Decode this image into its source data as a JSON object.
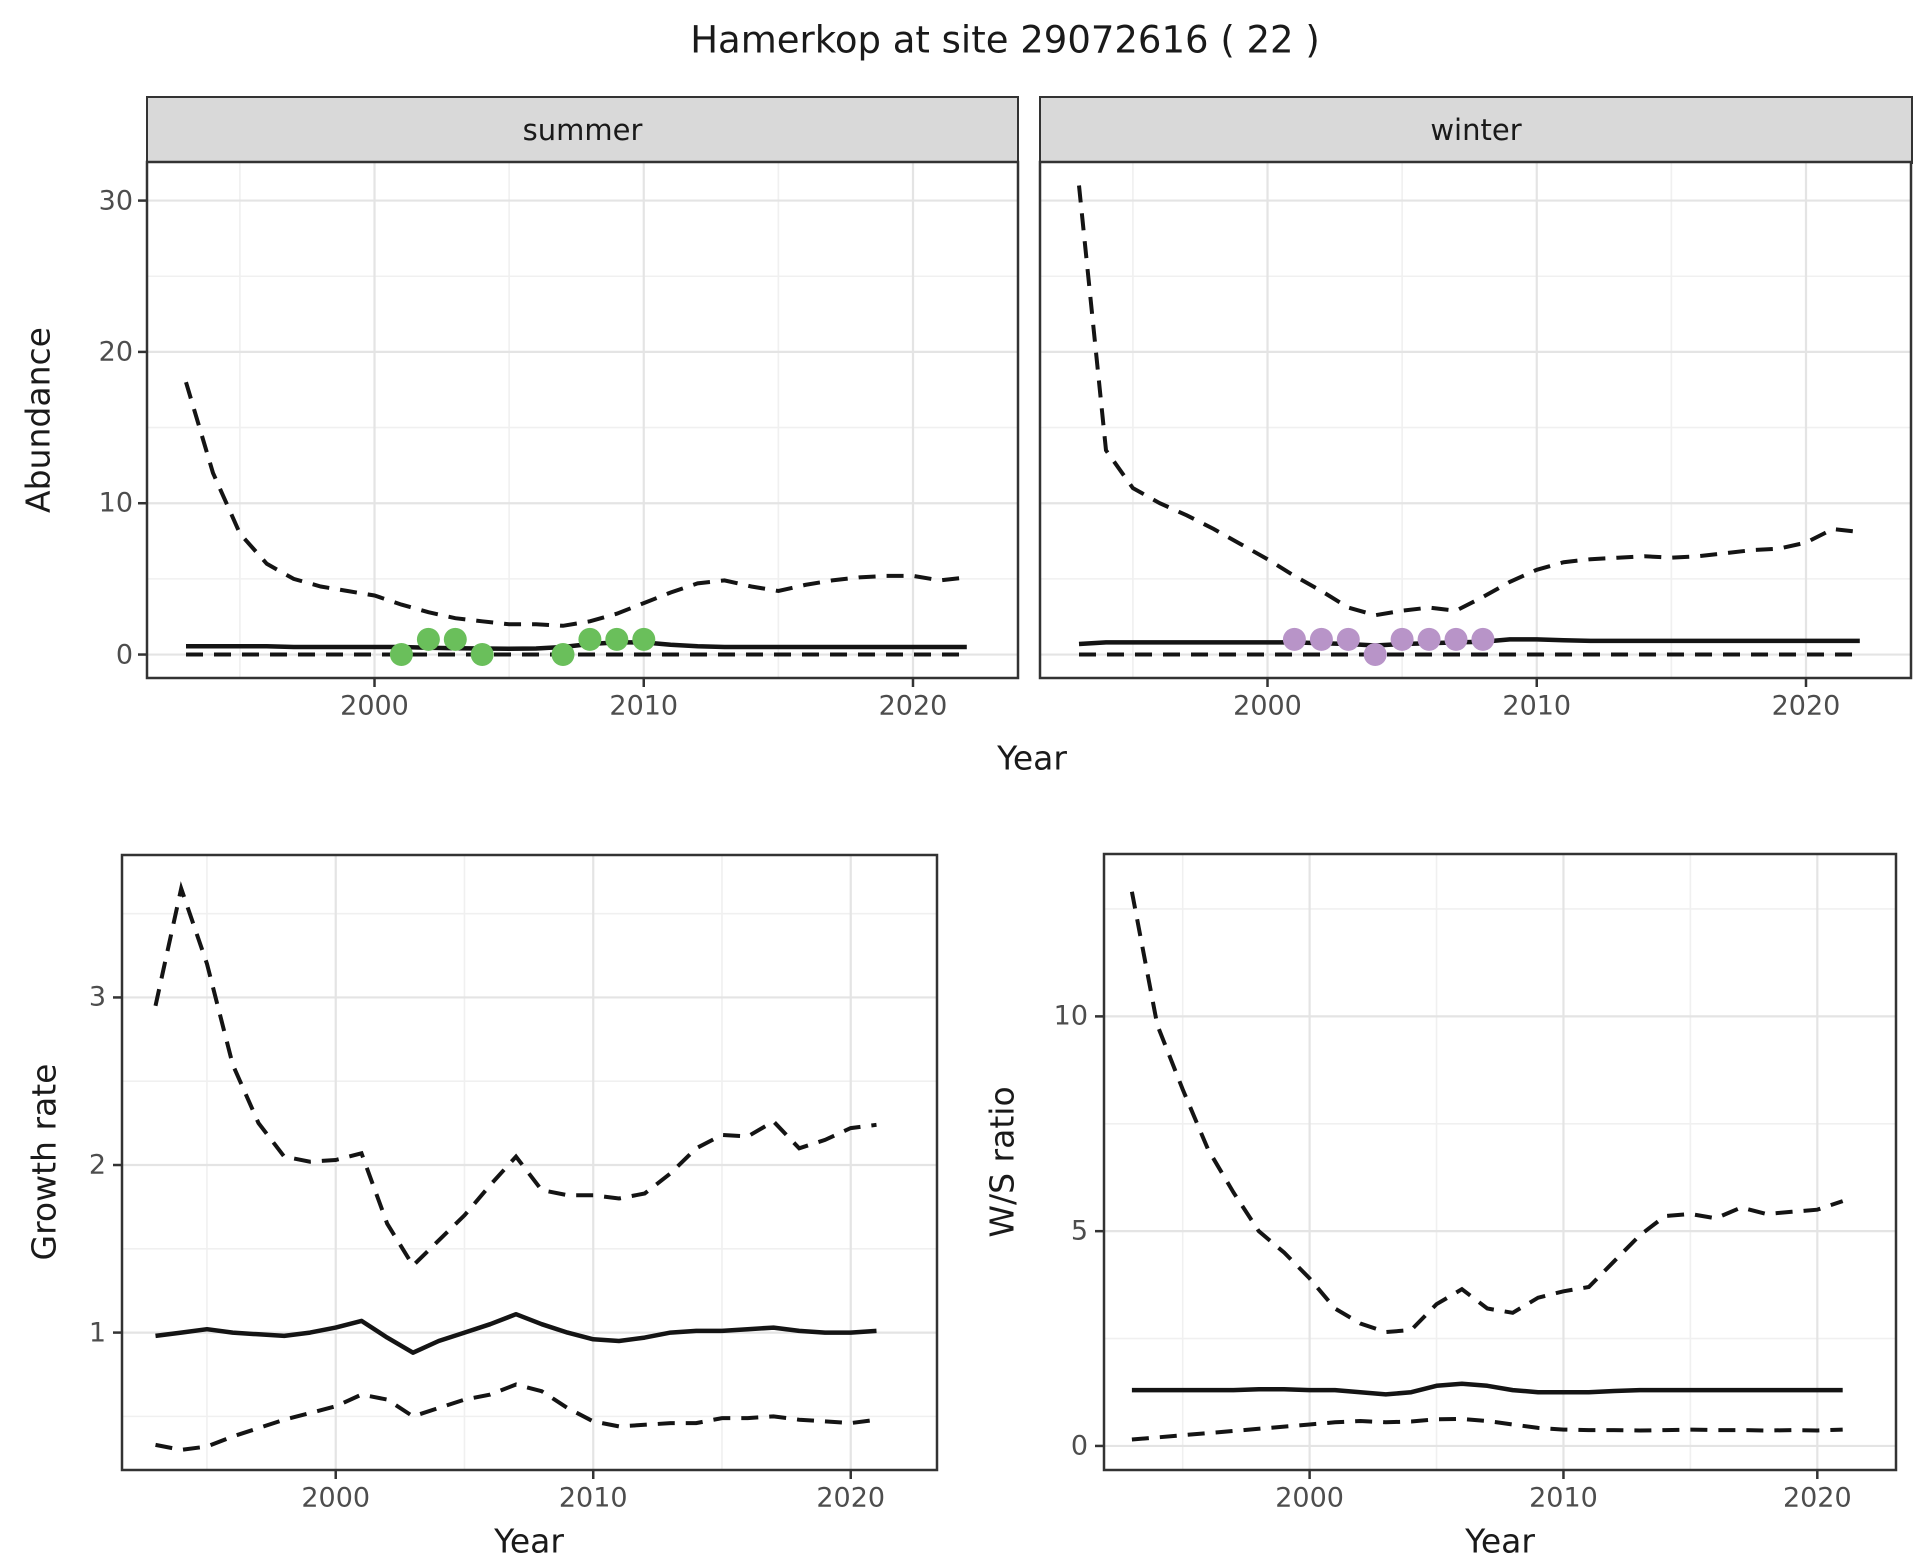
{
  "figure_title": "Hamerkop at site 29072616 ( 22 )",
  "chart_data": [
    {
      "id": "abundance_summer",
      "type": "line",
      "facet_label": "summer",
      "xlabel": "Year",
      "ylabel": "Abundance",
      "xlim": [
        1991.55,
        2023.9
      ],
      "ylim": [
        -1.55,
        32.55
      ],
      "xticks": [
        2000,
        2010,
        2020
      ],
      "xtick_labels": [
        "2000",
        "2010",
        "2020"
      ],
      "xminor": [
        1995,
        2005,
        2015
      ],
      "yticks": [
        0,
        10,
        20,
        30
      ],
      "ytick_labels": [
        "0",
        "10",
        "20",
        "30"
      ],
      "yminor": [
        5,
        15,
        25
      ],
      "grid": true,
      "legend": "none",
      "x": [
        1993,
        1994,
        1995,
        1996,
        1997,
        1998,
        1999,
        2000,
        2001,
        2002,
        2003,
        2004,
        2005,
        2006,
        2007,
        2008,
        2009,
        2010,
        2011,
        2012,
        2013,
        2014,
        2015,
        2016,
        2017,
        2018,
        2019,
        2020,
        2021,
        2022
      ],
      "series": [
        {
          "name": "upper_ci",
          "style": "dashed",
          "values": [
            18,
            12,
            8,
            6,
            5,
            4.5,
            4.2,
            3.9,
            3.3,
            2.8,
            2.4,
            2.2,
            2.0,
            2.0,
            1.9,
            2.2,
            2.7,
            3.4,
            4.1,
            4.7,
            4.9,
            4.5,
            4.2,
            4.6,
            4.9,
            5.1,
            5.2,
            5.2,
            4.9,
            5.1
          ]
        },
        {
          "name": "median",
          "style": "solid",
          "values": [
            0.55,
            0.55,
            0.55,
            0.55,
            0.5,
            0.5,
            0.5,
            0.5,
            0.5,
            0.45,
            0.42,
            0.4,
            0.38,
            0.4,
            0.5,
            0.7,
            0.8,
            0.8,
            0.65,
            0.55,
            0.5,
            0.5,
            0.5,
            0.5,
            0.5,
            0.5,
            0.5,
            0.5,
            0.5,
            0.5
          ]
        },
        {
          "name": "lower_ci",
          "style": "dashed",
          "values": [
            0,
            0,
            0,
            0,
            0,
            0,
            0,
            0,
            0,
            0,
            0,
            0,
            0,
            0,
            0,
            0,
            0,
            0,
            0,
            0,
            0,
            0,
            0,
            0,
            0,
            0,
            0,
            0,
            0,
            0
          ]
        }
      ],
      "points": {
        "name": "observed_counts_summer",
        "color": "#6abf5b",
        "x": [
          2001,
          2002,
          2003,
          2004,
          2007,
          2008,
          2009,
          2010
        ],
        "y": [
          0,
          1,
          1,
          0,
          0,
          1,
          1,
          1
        ]
      }
    },
    {
      "id": "abundance_winter",
      "type": "line",
      "facet_label": "winter",
      "xlabel": "Year",
      "ylabel": "Abundance",
      "xlim": [
        1991.55,
        2023.9
      ],
      "ylim": [
        -1.55,
        32.55
      ],
      "xticks": [
        2000,
        2010,
        2020
      ],
      "xtick_labels": [
        "2000",
        "2010",
        "2020"
      ],
      "xminor": [
        1995,
        2005,
        2015
      ],
      "yticks": [
        0,
        10,
        20,
        30
      ],
      "ytick_labels": [
        "0",
        "10",
        "20",
        "30"
      ],
      "yminor": [
        5,
        15,
        25
      ],
      "grid": true,
      "legend": "none",
      "x": [
        1993,
        1994,
        1995,
        1996,
        1997,
        1998,
        1999,
        2000,
        2001,
        2002,
        2003,
        2004,
        2005,
        2006,
        2007,
        2008,
        2009,
        2010,
        2011,
        2012,
        2013,
        2014,
        2015,
        2016,
        2017,
        2018,
        2019,
        2020,
        2021,
        2022
      ],
      "series": [
        {
          "name": "upper_ci",
          "style": "dashed",
          "values": [
            31,
            13.5,
            11,
            10,
            9.2,
            8.3,
            7.3,
            6.3,
            5.2,
            4.2,
            3.1,
            2.6,
            2.9,
            3.1,
            2.9,
            3.8,
            4.8,
            5.6,
            6.1,
            6.3,
            6.4,
            6.5,
            6.4,
            6.5,
            6.7,
            6.9,
            7.0,
            7.4,
            8.3,
            8.1
          ]
        },
        {
          "name": "median",
          "style": "solid",
          "values": [
            0.7,
            0.8,
            0.8,
            0.8,
            0.8,
            0.8,
            0.8,
            0.8,
            0.8,
            0.75,
            0.7,
            0.6,
            0.7,
            0.75,
            0.8,
            0.85,
            1.0,
            1.0,
            0.95,
            0.9,
            0.9,
            0.9,
            0.9,
            0.9,
            0.9,
            0.9,
            0.9,
            0.9,
            0.9,
            0.9
          ]
        },
        {
          "name": "lower_ci",
          "style": "dashed",
          "values": [
            0,
            0,
            0,
            0,
            0,
            0,
            0,
            0,
            0,
            0,
            0,
            0,
            0,
            0,
            0,
            0,
            0,
            0,
            0,
            0,
            0,
            0,
            0,
            0,
            0,
            0,
            0,
            0,
            0,
            0
          ]
        }
      ],
      "points": {
        "name": "observed_counts_winter",
        "color": "#b894c8",
        "x": [
          2001,
          2002,
          2003,
          2004,
          2005,
          2006,
          2007,
          2008
        ],
        "y": [
          1,
          1,
          1,
          0,
          1,
          1,
          1,
          1
        ]
      }
    },
    {
      "id": "growth_rate",
      "type": "line",
      "facet_label": "",
      "xlabel": "Year",
      "ylabel": "Growth rate",
      "xlim": [
        1991.7,
        2023.35
      ],
      "ylim": [
        0.18,
        3.85
      ],
      "xticks": [
        2000,
        2010,
        2020
      ],
      "xtick_labels": [
        "2000",
        "2010",
        "2020"
      ],
      "xminor": [
        1995,
        2005,
        2015
      ],
      "yticks": [
        1,
        2,
        3
      ],
      "ytick_labels": [
        "1",
        "2",
        "3"
      ],
      "yminor": [
        0.5,
        1.5,
        2.5,
        3.5
      ],
      "grid": true,
      "legend": "none",
      "x": [
        1993,
        1994,
        1995,
        1996,
        1997,
        1998,
        1999,
        2000,
        2001,
        2002,
        2003,
        2004,
        2005,
        2006,
        2007,
        2008,
        2009,
        2010,
        2011,
        2012,
        2013,
        2014,
        2015,
        2016,
        2017,
        2018,
        2019,
        2020,
        2021
      ],
      "series": [
        {
          "name": "upper_ci",
          "style": "dashed",
          "values": [
            2.95,
            3.65,
            3.2,
            2.6,
            2.25,
            2.05,
            2.02,
            2.03,
            2.07,
            1.65,
            1.4,
            1.55,
            1.7,
            1.88,
            2.05,
            1.85,
            1.82,
            1.82,
            1.8,
            1.83,
            1.95,
            2.1,
            2.18,
            2.17,
            2.26,
            2.1,
            2.15,
            2.22,
            2.24
          ]
        },
        {
          "name": "median",
          "style": "solid",
          "values": [
            0.98,
            1.0,
            1.02,
            1.0,
            0.99,
            0.98,
            1.0,
            1.03,
            1.07,
            0.97,
            0.88,
            0.95,
            1.0,
            1.05,
            1.11,
            1.05,
            1.0,
            0.96,
            0.95,
            0.97,
            1.0,
            1.01,
            1.01,
            1.02,
            1.03,
            1.01,
            1.0,
            1.0,
            1.01
          ]
        },
        {
          "name": "lower_ci",
          "style": "dashed",
          "values": [
            0.33,
            0.3,
            0.32,
            0.38,
            0.43,
            0.48,
            0.52,
            0.56,
            0.63,
            0.6,
            0.5,
            0.55,
            0.6,
            0.63,
            0.69,
            0.65,
            0.55,
            0.47,
            0.44,
            0.45,
            0.46,
            0.46,
            0.49,
            0.49,
            0.5,
            0.48,
            0.47,
            0.46,
            0.48
          ]
        }
      ],
      "points": null
    },
    {
      "id": "ws_ratio",
      "type": "line",
      "facet_label": "",
      "xlabel": "Year",
      "ylabel": "W/S ratio",
      "xlim": [
        1991.9,
        2023.1
      ],
      "ylim": [
        -0.56,
        13.78
      ],
      "xticks": [
        2000,
        2010,
        2020
      ],
      "xtick_labels": [
        "2000",
        "2010",
        "2020"
      ],
      "xminor": [
        1995,
        2005,
        2015
      ],
      "yticks": [
        0,
        5,
        10
      ],
      "ytick_labels": [
        "0",
        "5",
        "10"
      ],
      "yminor": [
        2.5,
        7.5,
        12.5
      ],
      "grid": true,
      "legend": "none",
      "x": [
        1993,
        1994,
        1995,
        1996,
        1997,
        1998,
        1999,
        2000,
        2001,
        2002,
        2003,
        2004,
        2005,
        2006,
        2007,
        2008,
        2009,
        2010,
        2011,
        2012,
        2013,
        2014,
        2015,
        2016,
        2017,
        2018,
        2019,
        2020,
        2021
      ],
      "series": [
        {
          "name": "upper_ci",
          "style": "dashed",
          "values": [
            12.9,
            9.8,
            8.3,
            6.9,
            5.9,
            5.0,
            4.5,
            3.9,
            3.2,
            2.85,
            2.65,
            2.7,
            3.3,
            3.65,
            3.2,
            3.1,
            3.45,
            3.6,
            3.7,
            4.3,
            4.9,
            5.35,
            5.4,
            5.3,
            5.55,
            5.4,
            5.45,
            5.5,
            5.7
          ]
        },
        {
          "name": "median",
          "style": "solid",
          "values": [
            1.3,
            1.3,
            1.3,
            1.3,
            1.3,
            1.32,
            1.32,
            1.3,
            1.3,
            1.25,
            1.2,
            1.25,
            1.4,
            1.45,
            1.4,
            1.3,
            1.25,
            1.25,
            1.25,
            1.28,
            1.3,
            1.3,
            1.3,
            1.3,
            1.3,
            1.3,
            1.3,
            1.3,
            1.3
          ]
        },
        {
          "name": "lower_ci",
          "style": "dashed",
          "values": [
            0.15,
            0.2,
            0.25,
            0.3,
            0.35,
            0.4,
            0.45,
            0.5,
            0.55,
            0.58,
            0.55,
            0.57,
            0.62,
            0.63,
            0.58,
            0.5,
            0.42,
            0.38,
            0.37,
            0.37,
            0.36,
            0.37,
            0.38,
            0.37,
            0.37,
            0.36,
            0.37,
            0.36,
            0.38
          ]
        }
      ],
      "points": null
    }
  ]
}
